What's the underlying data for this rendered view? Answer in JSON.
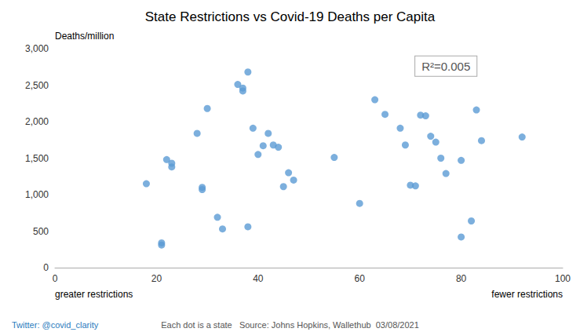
{
  "chart_data": {
    "type": "scatter",
    "title": "State Restrictions vs Covid-19 Deaths per Capita",
    "ylabel": "Deaths/million",
    "xlabel_left": "greater restrictions",
    "xlabel_right": "fewer restrictions",
    "annotations": [
      "R²=0.005"
    ],
    "footer": [
      "Twitter: @covid_clarity",
      "Each dot is a state   Source: Johns Hopkins, Wallethub  03/08/2021"
    ],
    "color": "#5B9BD5",
    "x": [
      18,
      21,
      21,
      22,
      23,
      23,
      28,
      29,
      29,
      30,
      32,
      33,
      36,
      37,
      37,
      38,
      38,
      39,
      40,
      41,
      42,
      43,
      44,
      45,
      46,
      47,
      55,
      60,
      63,
      65,
      68,
      69,
      70,
      71,
      72,
      73,
      74,
      75,
      76,
      77,
      80,
      80,
      82,
      83,
      84,
      92
    ],
    "values": [
      1150,
      340,
      310,
      1480,
      1430,
      1380,
      1840,
      1100,
      1070,
      2180,
      690,
      530,
      2510,
      2460,
      2420,
      2680,
      560,
      1910,
      1550,
      1670,
      1840,
      1680,
      1650,
      1110,
      1300,
      1200,
      1510,
      880,
      2300,
      2100,
      1910,
      1680,
      1130,
      1120,
      2090,
      2080,
      1800,
      1720,
      1500,
      1290,
      1470,
      420,
      640,
      2160,
      1740,
      1790
    ],
    "xlim": [
      0,
      100
    ],
    "ylim": [
      0,
      3000
    ],
    "xticks": [
      0,
      20,
      40,
      60,
      80,
      100
    ],
    "yticks": [
      0,
      500,
      {
        "value": 1000,
        "label": "1,000"
      },
      {
        "value": 1500,
        "label": "1,500"
      },
      {
        "value": 2000,
        "label": "2,000"
      },
      {
        "value": 2500,
        "label": "2,500"
      },
      {
        "value": 3000,
        "label": "3,000"
      }
    ],
    "grid": false
  }
}
